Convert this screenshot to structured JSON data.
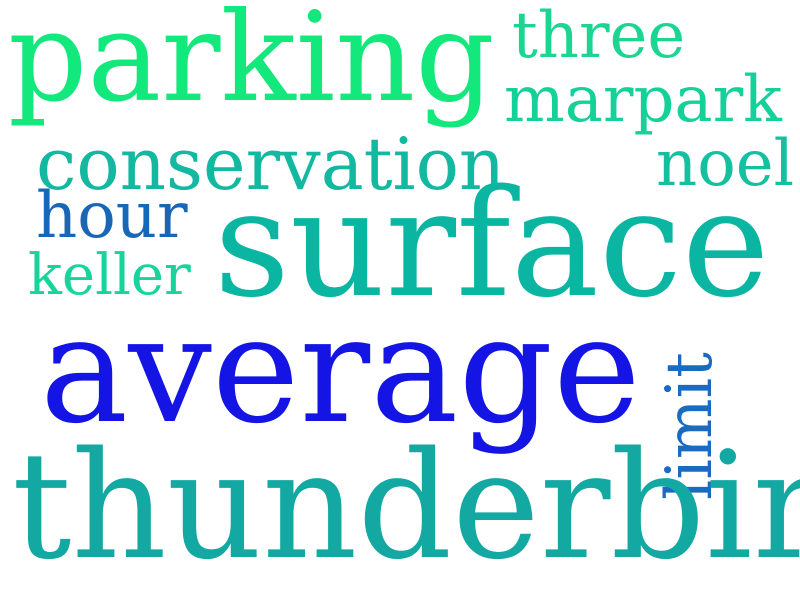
{
  "words": {
    "parking": {
      "text": "parking",
      "color": "#13e87c"
    },
    "three": {
      "text": "three",
      "color": "#1ad690"
    },
    "marpark": {
      "text": "marpark",
      "color": "#14d19a"
    },
    "conservation": {
      "text": "conservation",
      "color": "#13b8a0"
    },
    "noel": {
      "text": "noel",
      "color": "#15c0a0"
    },
    "hour": {
      "text": "hour",
      "color": "#1767b6"
    },
    "surface": {
      "text": "surface",
      "color": "#0ab6a2"
    },
    "keller": {
      "text": "keller",
      "color": "#17d49c"
    },
    "average": {
      "text": "average",
      "color": "#1414e4"
    },
    "limit": {
      "text": "limit",
      "color": "#1a6ac0"
    },
    "thunderbird": {
      "text": "thunderbird",
      "color": "#14a8a2"
    }
  }
}
